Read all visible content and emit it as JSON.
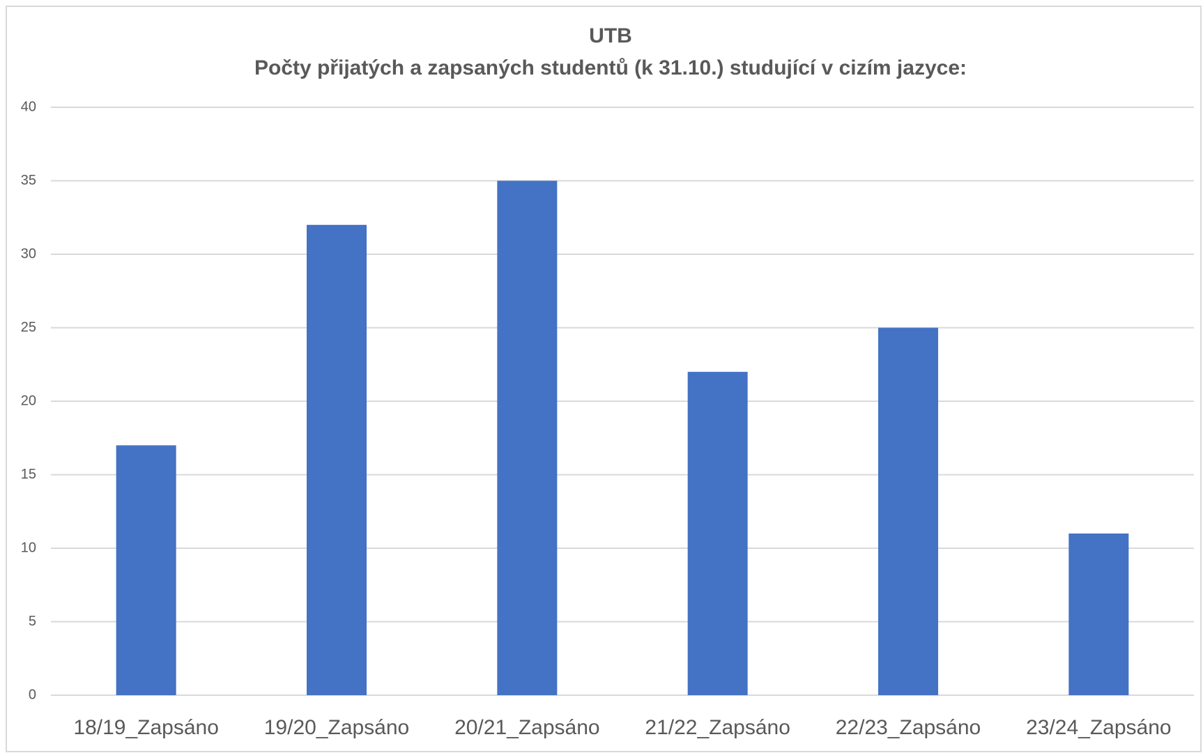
{
  "chart_data": {
    "type": "bar",
    "title": "UTB",
    "subtitle": "Počty přijatých a zapsaných studentů (k 31.10.) studující v cizím jazyce:",
    "categories": [
      "18/19_Zapsáno",
      "19/20_Zapsáno",
      "20/21_Zapsáno",
      "21/22_Zapsáno",
      "22/23_Zapsáno",
      "23/24_Zapsáno"
    ],
    "values": [
      17,
      32,
      35,
      22,
      25,
      11
    ],
    "color": "#4472c4",
    "ylim": [
      0,
      40
    ],
    "yticks": [
      0,
      5,
      10,
      15,
      20,
      25,
      30,
      35,
      40
    ],
    "grid": true
  }
}
